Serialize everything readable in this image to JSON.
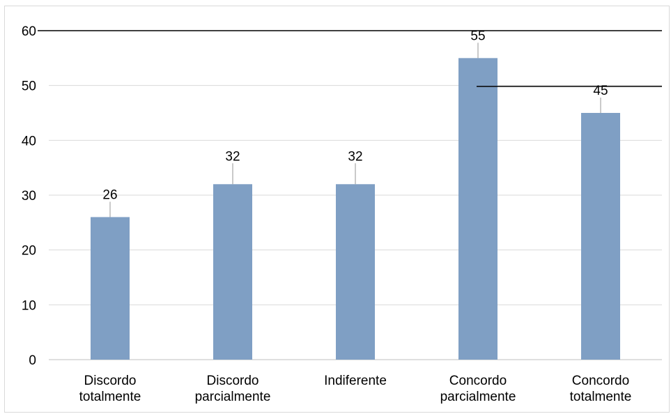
{
  "chart_data": {
    "type": "bar",
    "categories": [
      [
        "Discordo",
        "totalmente"
      ],
      [
        "Discordo",
        "parcialmente"
      ],
      [
        "Indiferente"
      ],
      [
        "Concordo",
        "parcialmente"
      ],
      [
        "Concordo",
        "totalmente"
      ]
    ],
    "values": [
      26,
      32,
      32,
      55,
      45
    ],
    "data_labels": [
      "26",
      "32",
      "32",
      "55",
      "45"
    ],
    "title": "",
    "xlabel": "",
    "ylabel": "",
    "ylim": [
      0,
      60
    ],
    "yticks": [
      0,
      10,
      20,
      30,
      40,
      50,
      60
    ],
    "grid": true,
    "legend": "none",
    "colors": {
      "bar": "#7f9fc4",
      "grid": "#d9d9d9",
      "axis": "#bfbfbf",
      "leader": "#a6a6a6",
      "reference_line": "#000000"
    }
  }
}
